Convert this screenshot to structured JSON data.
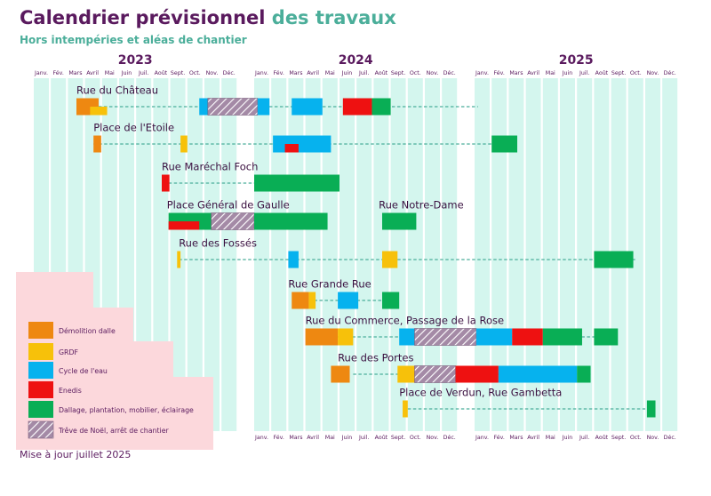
{
  "header": {
    "title_part1": "Calendrier prévisionnel",
    "title_part2": "des travaux",
    "subtitle": "Hors intempéries et aléas de chantier"
  },
  "footer": {
    "text": "Mise à jour juillet 2025"
  },
  "colors": {
    "demolition": "#ee8811",
    "grdf": "#f7c10a",
    "eau": "#06b2ee",
    "enedis": "#ee1111",
    "dallage": "#09ae55",
    "treve": "#a48aa6",
    "month_band": "#d4f6ee",
    "legend_bg": "#fcd8dc",
    "title_purple": "#5a1a5e",
    "teal": "#4bae9a",
    "dashed_line": "#4bae9a"
  },
  "chart_data": {
    "type": "gantt",
    "time_unit": "months since Jan 2023 (0 = start of January 2023)",
    "years": [
      "2023",
      "2024",
      "2025"
    ],
    "month_labels": [
      "Janv.",
      "Fév.",
      "Mars",
      "Avril",
      "Mai",
      "Juin",
      "Juil.",
      "Août",
      "Sept.",
      "Oct.",
      "Nov.",
      "Déc."
    ],
    "legend": [
      {
        "key": "demolition",
        "label": "Démolition dalle"
      },
      {
        "key": "grdf",
        "label": "GRDF"
      },
      {
        "key": "eau",
        "label": "Cycle de l'eau"
      },
      {
        "key": "enedis",
        "label": "Enedis"
      },
      {
        "key": "dallage",
        "label": "Dallage, plantation, mobilier, éclairage"
      },
      {
        "key": "treve",
        "label": "Trêve de Noël, arrêt de chantier"
      }
    ],
    "streets": [
      {
        "name": "Rue du Château",
        "label_start": 2.5,
        "dashed": [
          3.8,
          24.2
        ],
        "tasks": [
          {
            "type": "demolition",
            "start": 2.5,
            "end": 3.8
          },
          {
            "type": "grdf",
            "start": 3.3,
            "end": 4.3,
            "half": "bottom"
          },
          {
            "type": "eau",
            "start": 9.7,
            "end": 10.2
          },
          {
            "type": "treve",
            "start": 10.2,
            "end": 12.2
          },
          {
            "type": "eau",
            "start": 12.2,
            "end": 12.9
          },
          {
            "type": "eau",
            "start": 14.2,
            "end": 16.0
          },
          {
            "type": "enedis",
            "start": 17.2,
            "end": 18.9
          },
          {
            "type": "dallage",
            "start": 18.9,
            "end": 20.0
          }
        ]
      },
      {
        "name": "Place de l'Etoile",
        "label_start": 3.5,
        "dashed": [
          3.5,
          26.0
        ],
        "tasks": [
          {
            "type": "demolition",
            "start": 3.5,
            "end": 3.95
          },
          {
            "type": "grdf",
            "start": 8.6,
            "end": 9.0
          },
          {
            "type": "eau",
            "start": 13.1,
            "end": 16.5
          },
          {
            "type": "enedis",
            "start": 13.8,
            "end": 14.6,
            "half": "bottom"
          },
          {
            "type": "dallage",
            "start": 25.0,
            "end": 26.5
          }
        ]
      },
      {
        "name": "Rue Maréchal Foch",
        "label_start": 7.5,
        "dashed": [
          7.9,
          12.0
        ],
        "tasks": [
          {
            "type": "enedis",
            "start": 7.5,
            "end": 7.95
          },
          {
            "type": "dallage",
            "start": 12.0,
            "end": 17.0
          }
        ]
      },
      {
        "name": "Place Général de Gaulle",
        "label_start": 7.8,
        "dashed": null,
        "tasks": [
          {
            "type": "dallage",
            "start": 7.9,
            "end": 10.4
          },
          {
            "type": "enedis",
            "start": 7.9,
            "end": 9.7,
            "half": "bottom"
          },
          {
            "type": "treve",
            "start": 10.4,
            "end": 12.0
          },
          {
            "type": "dallage",
            "start": 12.0,
            "end": 16.3
          }
        ]
      },
      {
        "name": "Rue Notre-Dame",
        "label_start": 19.3,
        "dashed": null,
        "tasks": [
          {
            "type": "dallage",
            "start": 19.5,
            "end": 21.5
          }
        ]
      },
      {
        "name": "Rue des Fossés",
        "label_start": 8.5,
        "dashed": [
          8.5,
          33.5
        ],
        "tasks": [
          {
            "type": "grdf",
            "start": 8.4,
            "end": 8.6
          },
          {
            "type": "eau",
            "start": 14.0,
            "end": 14.6
          },
          {
            "type": "grdf",
            "start": 19.5,
            "end": 20.4
          },
          {
            "type": "dallage",
            "start": 31.0,
            "end": 33.3
          }
        ]
      },
      {
        "name": "Rue Grande Rue",
        "label_start": 14.0,
        "dashed": [
          15.2,
          20.5
        ],
        "tasks": [
          {
            "type": "demolition",
            "start": 14.2,
            "end": 15.2
          },
          {
            "type": "grdf",
            "start": 15.2,
            "end": 15.6
          },
          {
            "type": "eau",
            "start": 16.9,
            "end": 18.1
          },
          {
            "type": "dallage",
            "start": 19.5,
            "end": 20.5
          }
        ]
      },
      {
        "name": "Rue du Commerce, Passage de la Rose",
        "label_start": 15.0,
        "dashed": [
          16.5,
          32.4
        ],
        "tasks": [
          {
            "type": "demolition",
            "start": 15.0,
            "end": 16.9
          },
          {
            "type": "grdf",
            "start": 16.9,
            "end": 17.8
          },
          {
            "type": "eau",
            "start": 20.5,
            "end": 21.4
          },
          {
            "type": "treve",
            "start": 21.4,
            "end": 24.1
          },
          {
            "type": "eau",
            "start": 24.1,
            "end": 26.2
          },
          {
            "type": "enedis",
            "start": 26.2,
            "end": 28.0
          },
          {
            "type": "dallage",
            "start": 28.0,
            "end": 30.3
          },
          {
            "type": "dallage",
            "start": 31.0,
            "end": 32.4
          }
        ]
      },
      {
        "name": "Rue des Portes",
        "label_start": 16.9,
        "dashed": [
          17.8,
          30.8
        ],
        "tasks": [
          {
            "type": "demolition",
            "start": 16.5,
            "end": 17.6
          },
          {
            "type": "grdf",
            "start": 20.4,
            "end": 21.4
          },
          {
            "type": "treve",
            "start": 21.4,
            "end": 23.8
          },
          {
            "type": "enedis",
            "start": 23.8,
            "end": 25.4
          },
          {
            "type": "eau",
            "start": 25.4,
            "end": 30.0
          },
          {
            "type": "dallage",
            "start": 30.0,
            "end": 30.8
          }
        ]
      },
      {
        "name": "Place de Verdun, Rue Gambetta",
        "label_start": 20.5,
        "dashed": [
          21.0,
          34.0
        ],
        "tasks": [
          {
            "type": "grdf",
            "start": 20.7,
            "end": 21.0
          },
          {
            "type": "dallage",
            "start": 34.1,
            "end": 34.6
          }
        ]
      }
    ]
  }
}
